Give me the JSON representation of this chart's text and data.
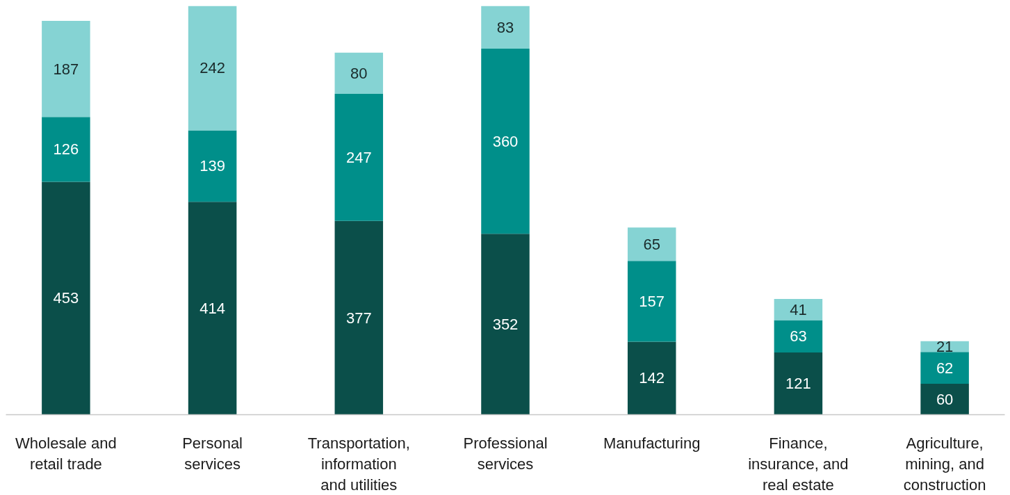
{
  "chart_data": {
    "type": "bar",
    "stacked": true,
    "data_labels": true,
    "grid": false,
    "categories": [
      "Wholesale and retail trade",
      "Personal services",
      "Transportation, information and utilities",
      "Professional services",
      "Manufacturing",
      "Finance, insurance, and real estate",
      "Agriculture, mining, and construction"
    ],
    "series": [
      {
        "color": "#0b4f4a",
        "values": [
          453,
          414,
          377,
          352,
          142,
          121,
          60
        ]
      },
      {
        "color": "#008f8a",
        "values": [
          126,
          139,
          247,
          360,
          157,
          63,
          62
        ]
      },
      {
        "color": "#85d3d3",
        "values": [
          187,
          242,
          80,
          83,
          65,
          41,
          21
        ]
      }
    ]
  }
}
